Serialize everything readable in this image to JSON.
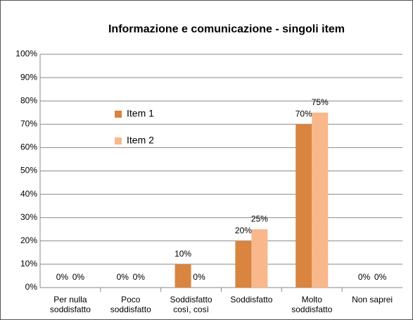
{
  "chart_data": {
    "type": "bar",
    "title": "Informazione e comunicazione - singoli item",
    "categories": [
      "Per nulla\nsoddisfatto",
      "Poco\nsoddisfatto",
      "Soddisfatto\ncosì, così",
      "Soddisfatto",
      "Molto\nsoddisfatto",
      "Non saprei"
    ],
    "series": [
      {
        "name": "Item 1",
        "color": "#d9843f",
        "values": [
          0,
          0,
          10,
          20,
          70,
          0
        ],
        "value_labels": [
          "0%",
          "0%",
          "10%",
          "20%",
          "70%",
          "0%"
        ]
      },
      {
        "name": "Item 2",
        "color": "#f8b88b",
        "values": [
          0,
          0,
          0,
          25,
          75,
          0
        ],
        "value_labels": [
          "0%",
          "0%",
          "0%",
          "25%",
          "75%",
          "0%"
        ]
      }
    ],
    "ylim": [
      0,
      100
    ],
    "yticks": [
      {
        "value": 0,
        "label": "0%"
      },
      {
        "value": 10,
        "label": "10%"
      },
      {
        "value": 20,
        "label": "20%"
      },
      {
        "value": 30,
        "label": "30%"
      },
      {
        "value": 40,
        "label": "40%"
      },
      {
        "value": 50,
        "label": "50%"
      },
      {
        "value": 60,
        "label": "60%"
      },
      {
        "value": 70,
        "label": "70%"
      },
      {
        "value": 80,
        "label": "80%"
      },
      {
        "value": 90,
        "label": "90%"
      },
      {
        "value": 100,
        "label": "100%"
      }
    ],
    "grid": true,
    "legend": "upper-left"
  }
}
